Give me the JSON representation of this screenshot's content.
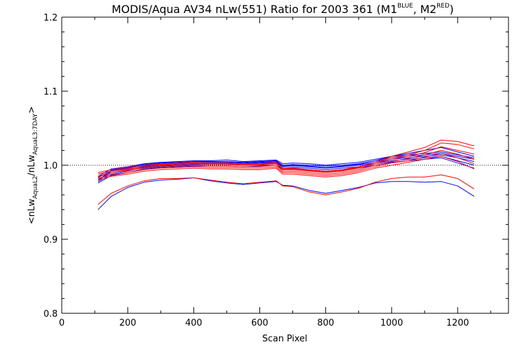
{
  "chart_data": {
    "type": "line",
    "title": "MODIS/Aqua AV34 nLw(551) Ratio for 2003 361 (M1",
    "title_sup_1": "BLUE",
    "title_mid": ", M2",
    "title_sup_2": "RED",
    "title_end": ")",
    "xlabel": "Scan Pixel",
    "ylabel": {
      "open": "<nLw",
      "sub1": "AquaL2",
      "mid": "/nLw",
      "sub2": "AquaL3:7DAY",
      "close": ">"
    },
    "xlim": [
      0,
      1354
    ],
    "ylim": [
      0.8,
      1.2
    ],
    "x_ticks": [
      0,
      200,
      400,
      600,
      800,
      1000,
      1200
    ],
    "y_ticks": [
      0.8,
      0.9,
      1.0,
      1.1,
      1.2
    ],
    "reference_line": {
      "y": 1.0,
      "style": "dotted"
    },
    "grid": false,
    "x": [
      110,
      150,
      200,
      250,
      300,
      350,
      400,
      450,
      500,
      550,
      600,
      650,
      670,
      700,
      750,
      800,
      850,
      900,
      950,
      1000,
      1050,
      1100,
      1150,
      1200,
      1250
    ],
    "series": [
      {
        "color": "#0000ff",
        "values": [
          0.985,
          0.995,
          0.998,
          1.002,
          1.004,
          1.005,
          1.006,
          1.006,
          1.007,
          1.005,
          1.006,
          1.007,
          1.002,
          1.003,
          1.002,
          1.0,
          1.002,
          1.004,
          1.008,
          1.012,
          1.014,
          1.016,
          1.018,
          1.014,
          1.01
        ]
      },
      {
        "color": "#0000ff",
        "values": [
          0.983,
          0.993,
          0.997,
          1.001,
          1.003,
          1.004,
          1.005,
          1.005,
          1.005,
          1.004,
          1.005,
          1.006,
          1.0,
          1.001,
          1.0,
          0.999,
          1.0,
          1.002,
          1.006,
          1.01,
          1.012,
          1.014,
          1.016,
          1.012,
          1.008
        ]
      },
      {
        "color": "#0000ff",
        "values": [
          0.98,
          0.99,
          0.994,
          0.999,
          1.001,
          1.002,
          1.003,
          1.003,
          1.003,
          1.002,
          1.003,
          1.004,
          0.998,
          0.999,
          0.998,
          0.996,
          0.998,
          1.0,
          1.004,
          1.008,
          1.01,
          1.012,
          1.014,
          1.01,
          1.005
        ]
      },
      {
        "color": "#0000ff",
        "values": [
          0.978,
          0.988,
          0.992,
          0.997,
          0.999,
          1.0,
          1.001,
          1.001,
          1.001,
          1.0,
          1.001,
          1.002,
          0.996,
          0.997,
          0.996,
          0.994,
          0.996,
          0.998,
          1.002,
          1.006,
          1.008,
          1.01,
          1.012,
          1.006,
          1.0
        ]
      },
      {
        "color": "#0000ff",
        "values": [
          0.976,
          0.986,
          0.99,
          0.995,
          0.997,
          0.998,
          0.999,
          0.999,
          0.999,
          0.998,
          0.999,
          1.0,
          0.994,
          0.995,
          0.994,
          0.992,
          0.994,
          0.996,
          1.0,
          1.004,
          1.006,
          1.008,
          1.01,
          1.003,
          0.996
        ]
      },
      {
        "color": "#0000ff",
        "values": [
          0.98,
          0.992,
          0.996,
          1.0,
          1.002,
          1.003,
          1.004,
          1.004,
          1.004,
          1.003,
          1.004,
          1.005,
          0.999,
          1.0,
          0.999,
          0.997,
          0.999,
          1.001,
          1.006,
          1.012,
          1.016,
          1.02,
          1.024,
          1.018,
          1.012
        ]
      },
      {
        "color": "#0000ff",
        "values": [
          0.94,
          0.958,
          0.97,
          0.977,
          0.98,
          0.981,
          0.983,
          0.979,
          0.976,
          0.974,
          0.976,
          0.978,
          0.973,
          0.972,
          0.966,
          0.962,
          0.966,
          0.97,
          0.976,
          0.978,
          0.978,
          0.977,
          0.978,
          0.972,
          0.958
        ]
      },
      {
        "color": "#ff0000",
        "values": [
          0.99,
          0.994,
          0.997,
          1.0,
          1.002,
          1.003,
          1.004,
          1.003,
          1.003,
          1.002,
          1.002,
          1.004,
          0.996,
          0.996,
          0.994,
          0.992,
          0.994,
          0.998,
          1.004,
          1.01,
          1.014,
          1.02,
          1.03,
          1.028,
          1.022
        ]
      },
      {
        "color": "#ff0000",
        "values": [
          0.988,
          0.992,
          0.995,
          0.998,
          1.0,
          1.001,
          1.002,
          1.001,
          1.001,
          1.0,
          1.0,
          1.002,
          0.994,
          0.994,
          0.992,
          0.99,
          0.992,
          0.996,
          1.002,
          1.008,
          1.012,
          1.017,
          1.025,
          1.02,
          1.015
        ]
      },
      {
        "color": "#ff0000",
        "values": [
          0.985,
          0.99,
          0.993,
          0.996,
          0.998,
          0.999,
          1.0,
          0.999,
          0.999,
          0.998,
          0.998,
          1.0,
          0.992,
          0.992,
          0.99,
          0.988,
          0.99,
          0.994,
          1.0,
          1.005,
          1.009,
          1.014,
          1.02,
          1.015,
          1.008
        ]
      },
      {
        "color": "#ff0000",
        "values": [
          0.982,
          0.987,
          0.99,
          0.994,
          0.996,
          0.997,
          0.998,
          0.997,
          0.997,
          0.996,
          0.996,
          0.998,
          0.99,
          0.99,
          0.988,
          0.986,
          0.988,
          0.992,
          0.998,
          1.003,
          1.006,
          1.011,
          1.016,
          1.01,
          1.002
        ]
      },
      {
        "color": "#ff0000",
        "values": [
          0.98,
          0.985,
          0.988,
          0.992,
          0.994,
          0.995,
          0.996,
          0.995,
          0.995,
          0.994,
          0.994,
          0.996,
          0.988,
          0.988,
          0.986,
          0.984,
          0.986,
          0.99,
          0.996,
          1.0,
          1.004,
          1.008,
          1.012,
          1.005,
          0.995
        ]
      },
      {
        "color": "#ff0000",
        "values": [
          0.984,
          0.99,
          0.994,
          0.998,
          1.001,
          1.002,
          1.003,
          1.002,
          1.002,
          1.001,
          1.001,
          1.003,
          0.995,
          0.995,
          0.993,
          0.991,
          0.993,
          0.997,
          1.004,
          1.012,
          1.018,
          1.024,
          1.034,
          1.032,
          1.026
        ]
      },
      {
        "color": "#ff0000",
        "values": [
          0.947,
          0.962,
          0.972,
          0.979,
          0.982,
          0.982,
          0.983,
          0.98,
          0.977,
          0.975,
          0.977,
          0.979,
          0.972,
          0.971,
          0.964,
          0.96,
          0.964,
          0.969,
          0.977,
          0.982,
          0.984,
          0.984,
          0.987,
          0.982,
          0.968
        ]
      }
    ]
  }
}
